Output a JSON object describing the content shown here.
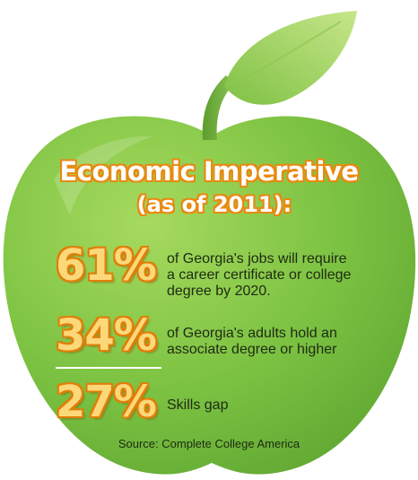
{
  "title": {
    "line1": "Economic Imperative",
    "line2": "(as of 2011):"
  },
  "stats": [
    {
      "value": "61%",
      "description_lines": [
        "of Georgia's jobs will require",
        "a career certificate or college",
        "degree by 2020."
      ]
    },
    {
      "value": "34%",
      "description_lines": [
        "of Georgia's adults hold an",
        "associate degree or higher"
      ]
    },
    {
      "value": "27%",
      "description_lines": [
        "Skills gap"
      ]
    }
  ],
  "source": "Source: Complete College America",
  "colors": {
    "apple_green": "#7cc242",
    "leaf_green": "#a3d35c",
    "number_fill": "#fcd87a",
    "number_outline": "#e07f08",
    "text_dark": "#1f2a14"
  }
}
